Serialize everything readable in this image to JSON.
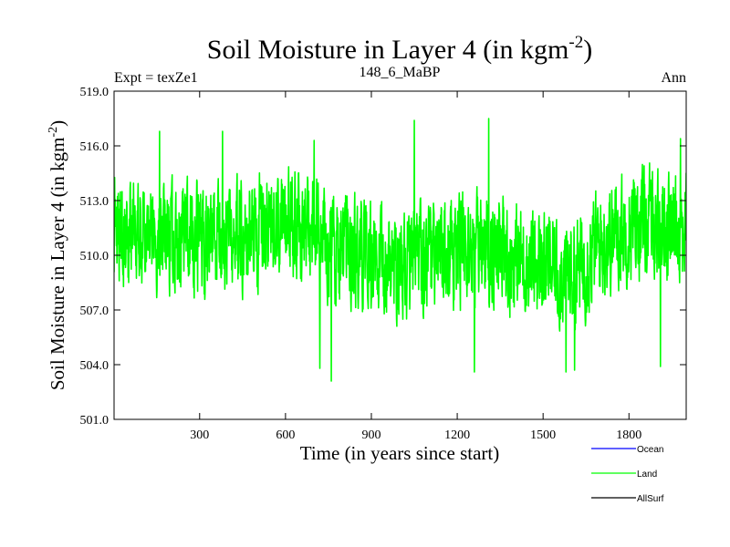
{
  "chart_data": {
    "type": "line",
    "title_main": "Soil Moisture in Layer 4 (in kgm",
    "title_sup": "-2",
    "title_close": ")",
    "subtitle_left": "Expt = texZe1",
    "subtitle_center": "148_6_MaBP",
    "subtitle_right": "Ann",
    "xlabel": "Time (in years since start)",
    "ylabel_main": "Soil Moisture in Layer 4 (in kgm",
    "ylabel_sup": "-2",
    "ylabel_close": ")",
    "xlim": [
      1,
      2000
    ],
    "ylim": [
      501,
      519
    ],
    "xticks": [
      300,
      600,
      900,
      1200,
      1500,
      1800
    ],
    "xtick_labels": [
      "300",
      "600",
      "900",
      "1200",
      "1500",
      "1800"
    ],
    "yticks": [
      501,
      504,
      507,
      510,
      513,
      516,
      519
    ],
    "ytick_labels": [
      "501.0",
      "504.0",
      "507.0",
      "510.0",
      "513.0",
      "516.0",
      "519.0"
    ],
    "legend": [
      {
        "name": "Ocean",
        "color": "#0000ff"
      },
      {
        "name": "Land",
        "color": "#00ff00"
      },
      {
        "name": "AllSurf",
        "color": "#000000"
      }
    ],
    "series": [
      {
        "name": "Land",
        "color": "#00ff00",
        "x_start": 1,
        "x_end": 2000,
        "n_points": 2000,
        "mean": 510.5,
        "min": 503.1,
        "max": 517.5,
        "extremes": [
          {
            "x": 760,
            "y": 503.1
          },
          {
            "x": 720,
            "y": 503.8
          },
          {
            "x": 1260,
            "y": 503.6
          },
          {
            "x": 1580,
            "y": 503.6
          },
          {
            "x": 1610,
            "y": 503.7
          },
          {
            "x": 1910,
            "y": 503.9
          },
          {
            "x": 1310,
            "y": 517.5
          },
          {
            "x": 1050,
            "y": 517.4
          },
          {
            "x": 380,
            "y": 516.8
          },
          {
            "x": 160,
            "y": 516.8
          },
          {
            "x": 1980,
            "y": 516.4
          },
          {
            "x": 700,
            "y": 516.3
          }
        ]
      },
      {
        "name": "Ocean",
        "color": "#0000ff",
        "values": []
      },
      {
        "name": "AllSurf",
        "color": "#000000",
        "values": []
      }
    ]
  }
}
